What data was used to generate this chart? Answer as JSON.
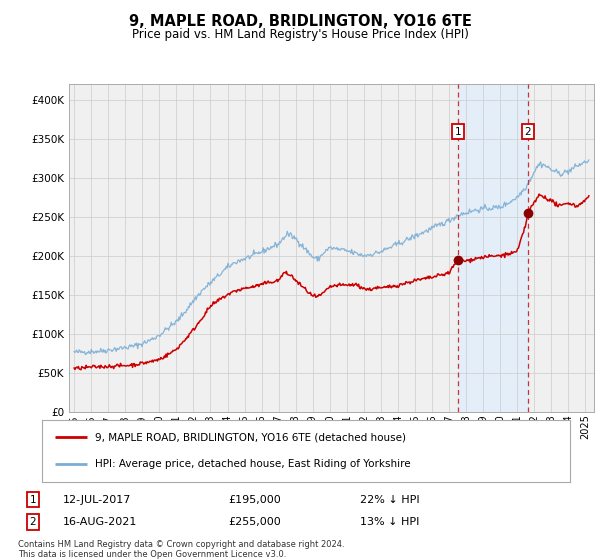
{
  "title": "9, MAPLE ROAD, BRIDLINGTON, YO16 6TE",
  "subtitle": "Price paid vs. HM Land Registry's House Price Index (HPI)",
  "legend_house": "9, MAPLE ROAD, BRIDLINGTON, YO16 6TE (detached house)",
  "legend_hpi": "HPI: Average price, detached house, East Riding of Yorkshire",
  "footnote_line1": "Contains HM Land Registry data © Crown copyright and database right 2024.",
  "footnote_line2": "This data is licensed under the Open Government Licence v3.0.",
  "sale1_date": "12-JUL-2017",
  "sale1_price": 195000,
  "sale1_price_str": "£195,000",
  "sale1_label": "22% ↓ HPI",
  "sale2_date": "16-AUG-2021",
  "sale2_price": 255000,
  "sale2_price_str": "£255,000",
  "sale2_label": "13% ↓ HPI",
  "sale1_x": 2017.53,
  "sale2_x": 2021.62,
  "house_color": "#cc0000",
  "hpi_color": "#7aaed6",
  "dot_color": "#8b0000",
  "shade_color": "#ddeeff",
  "vline_color": "#cc3333",
  "background_color": "#f0f0f0",
  "grid_color": "#cccccc",
  "border_color": "#aaaaaa",
  "ylim": [
    0,
    420000
  ],
  "xlim_start": 1994.7,
  "xlim_end": 2025.5,
  "yticks": [
    0,
    50000,
    100000,
    150000,
    200000,
    250000,
    300000,
    350000,
    400000
  ],
  "ytick_labels": [
    "£0",
    "£50K",
    "£100K",
    "£150K",
    "£200K",
    "£250K",
    "£300K",
    "£350K",
    "£400K"
  ],
  "xticks": [
    1995,
    1996,
    1997,
    1998,
    1999,
    2000,
    2001,
    2002,
    2003,
    2004,
    2005,
    2006,
    2007,
    2008,
    2009,
    2010,
    2011,
    2012,
    2013,
    2014,
    2015,
    2016,
    2017,
    2018,
    2019,
    2020,
    2021,
    2022,
    2023,
    2024,
    2025
  ]
}
